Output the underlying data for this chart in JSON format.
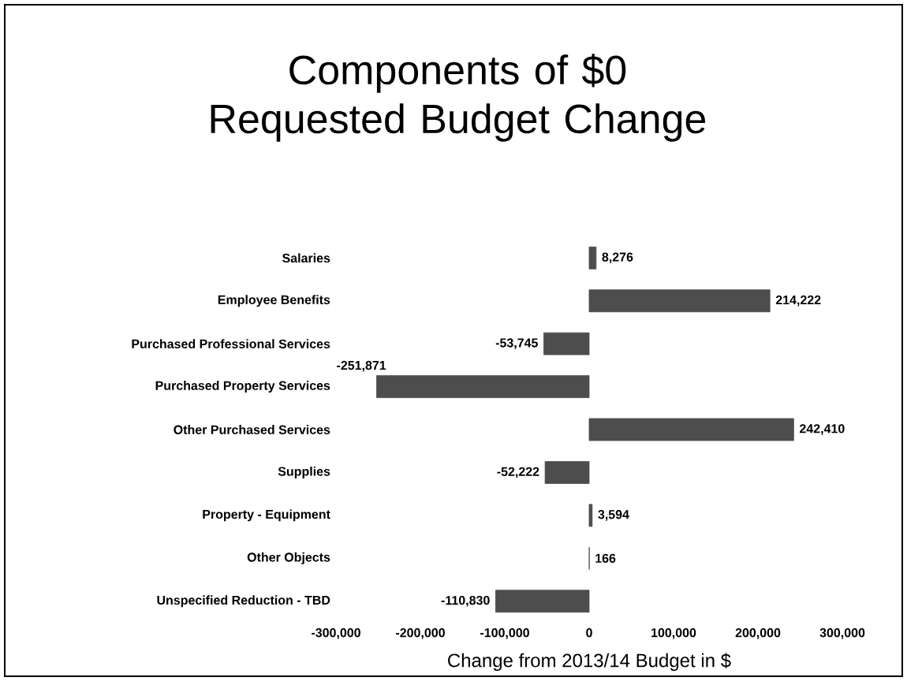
{
  "chart_data": {
    "type": "bar",
    "orientation": "horizontal",
    "title": "Components of $0 Requested Budget Change",
    "xlabel": "Change from 2013/14 Budget in $",
    "categories": [
      "Salaries",
      "Employee Benefits",
      "Purchased Professional Services",
      "Purchased Property Services",
      "Other Purchased Services",
      "Supplies",
      "Property - Equipment",
      "Other Objects",
      "Unspecified Reduction - TBD"
    ],
    "values": [
      8276,
      214222,
      -53745,
      -251871,
      242410,
      -52222,
      3594,
      166,
      -110830
    ],
    "value_labels": [
      "8,276",
      "214,222",
      "-53,745",
      "-251,871",
      "242,410",
      "-52,222",
      "3,594",
      "166",
      "-110,830"
    ],
    "color": "#4d4d4d",
    "xlim": [
      -300000,
      300000
    ],
    "xticks": [
      {
        "value": -300000,
        "label": "-300,000"
      },
      {
        "value": -200000,
        "label": "-200,000"
      },
      {
        "value": -100000,
        "label": "-100,000"
      },
      0,
      {
        "value": 100000,
        "label": "100,000"
      },
      {
        "value": 200000,
        "label": "200,000"
      },
      {
        "value": 300000,
        "label": "300,000"
      }
    ],
    "grid": false
  }
}
